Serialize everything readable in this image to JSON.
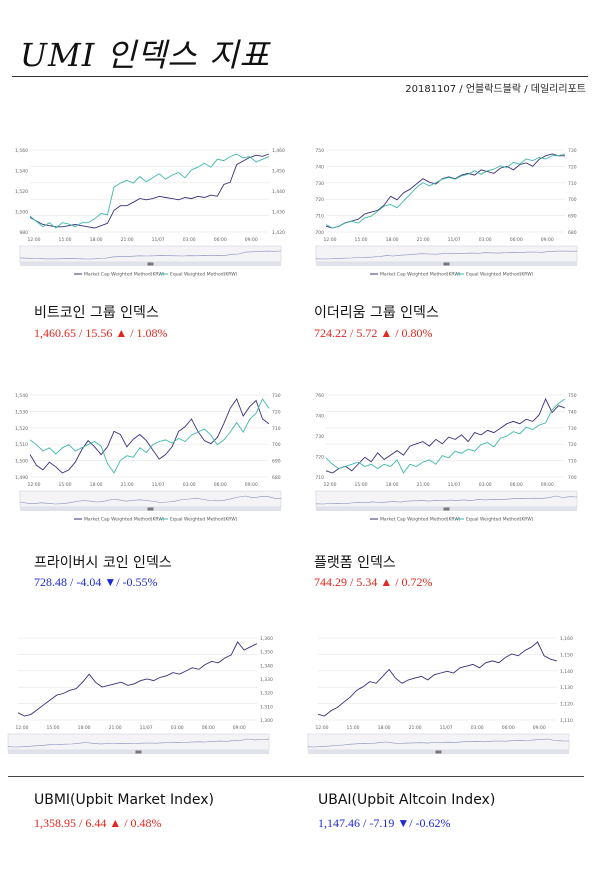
{
  "page": {
    "title": "UMI 인덱스 지표",
    "subtitle": "20181107 / 언블락드블락 / 데일리리포트"
  },
  "colors": {
    "up": "#e0281e",
    "down": "#1c2bd6",
    "series_cap": "#3b2f7a",
    "series_equal": "#3fb8a8"
  },
  "legend": {
    "cap": "Market Cap Weighted Method(KRW)",
    "equal": "Equal Weighted Method(KRW)"
  },
  "x_ticks": [
    "12:00",
    "15:00",
    "18:00",
    "21:00",
    "11/07",
    "03:00",
    "06:00",
    "09:00"
  ],
  "indexes": [
    {
      "name": "비트코인 그룹 인덱스",
      "value_text": "1,460.65 / 15.56 ▲ / 1.08%",
      "direction": "up",
      "chart_data": {
        "type": "line",
        "y_left_ticks": [
          "1,560",
          "1,540",
          "1,520",
          "1,500",
          "980"
        ],
        "y_right_ticks": [
          "1,460",
          "1,450",
          "1,440",
          "1,430",
          "1,420"
        ],
        "series": [
          {
            "name": "Market Cap Weighted Method(KRW)",
            "values": [
              1500,
              1497,
              1494,
              1493,
              1492,
              1492,
              1493,
              1494,
              1493,
              1492,
              1491,
              1493,
              1495,
              1506,
              1510,
              1510,
              1513,
              1516,
              1515,
              1516,
              1518,
              1517,
              1516,
              1515,
              1517,
              1516,
              1518,
              1517,
              1519,
              1518,
              1528,
              1530,
              1545,
              1548,
              1551,
              1553,
              1552,
              1554
            ]
          },
          {
            "name": "Equal Weighted Method(KRW)",
            "values": [
              1505,
              1501,
              1497,
              1500,
              1496,
              1500,
              1499,
              1497,
              1500,
              1500,
              1503,
              1507,
              1506,
              1527,
              1530,
              1532,
              1530,
              1535,
              1531,
              1534,
              1537,
              1533,
              1536,
              1538,
              1534,
              1540,
              1542,
              1545,
              1542,
              1548,
              1547,
              1550,
              1552,
              1549,
              1550,
              1546,
              1548,
              1550
            ]
          }
        ]
      }
    },
    {
      "name": "이더리움 그룹 인덱스",
      "value_text": "724.22 / 5.72 ▲ / 0.80%",
      "direction": "up",
      "chart_data": {
        "type": "line",
        "y_left_ticks": [
          "750",
          "740",
          "730",
          "720",
          "710",
          "700"
        ],
        "y_right_ticks": [
          "730",
          "720",
          "710",
          "700",
          "690",
          "680"
        ],
        "series": [
          {
            "name": "Market Cap Weighted Method(KRW)",
            "values": [
              704,
              703,
              704,
              706,
              707,
              708,
              711,
              712,
              713,
              716,
              721,
              719,
              723,
              725,
              728,
              731,
              729,
              728,
              731,
              732,
              731,
              733,
              734,
              733,
              736,
              735,
              734,
              737,
              738,
              736,
              739,
              740,
              738,
              742,
              744,
              745,
              744,
              744
            ]
          },
          {
            "name": "Equal Weighted Method(KRW)",
            "values": [
              708,
              706,
              707,
              709,
              710,
              709,
              712,
              713,
              716,
              719,
              720,
              718,
              722,
              726,
              730,
              733,
              731,
              733,
              735,
              736,
              735,
              737,
              738,
              740,
              738,
              740,
              741,
              743,
              742,
              745,
              744,
              747,
              746,
              748,
              747,
              749,
              749,
              750
            ]
          }
        ]
      }
    },
    {
      "name": "프라이버시 코인 인덱스",
      "value_text": "728.48 / -4.04 ▼/ -0.55%",
      "direction": "down",
      "chart_data": {
        "type": "line",
        "y_left_ticks": [
          "1,540",
          "1,530",
          "1,520",
          "1,510",
          "1,500",
          "1,490"
        ],
        "y_right_ticks": [
          "730",
          "720",
          "710",
          "700",
          "690",
          "680"
        ],
        "series": [
          {
            "name": "Market Cap Weighted Method(KRW)",
            "values": [
              1505,
              1498,
              1495,
              1500,
              1497,
              1493,
              1495,
              1500,
              1508,
              1514,
              1510,
              1505,
              1510,
              1520,
              1518,
              1510,
              1515,
              1518,
              1514,
              1508,
              1502,
              1505,
              1510,
              1520,
              1523,
              1528,
              1520,
              1514,
              1512,
              1516,
              1525,
              1535,
              1541,
              1530,
              1536,
              1540,
              1528,
              1525
            ]
          },
          {
            "name": "Equal Weighted Method(KRW)",
            "values": [
              1515,
              1512,
              1508,
              1510,
              1506,
              1510,
              1512,
              1508,
              1510,
              1512,
              1514,
              1511,
              1500,
              1494,
              1502,
              1505,
              1504,
              1510,
              1507,
              1512,
              1514,
              1515,
              1513,
              1516,
              1514,
              1518,
              1520,
              1522,
              1518,
              1512,
              1515,
              1520,
              1526,
              1520,
              1528,
              1532,
              1541,
              1535
            ]
          }
        ]
      }
    },
    {
      "name": "플랫폼 인덱스",
      "value_text": "744.29 / 5.34 ▲ / 0.72%",
      "direction": "up",
      "chart_data": {
        "type": "line",
        "y_left_ticks": [
          "760",
          "740",
          "730",
          "720",
          "710"
        ],
        "y_right_ticks": [
          "750",
          "740",
          "730",
          "720",
          "710",
          "700"
        ],
        "series": [
          {
            "name": "Market Cap Weighted Method(KRW)",
            "values": [
              716,
              715,
              717,
              718,
              716,
              719,
              722,
              720,
              724,
              721,
              723,
              725,
              723,
              727,
              728,
              729,
              727,
              730,
              728,
              731,
              730,
              732,
              729,
              733,
              732,
              734,
              733,
              735,
              737,
              738,
              737,
              739,
              738,
              741,
              748,
              742,
              745,
              744
            ]
          },
          {
            "name": "Equal Weighted Method(KRW)",
            "values": [
              715,
              712,
              710,
              711,
              712,
              713,
              711,
              712,
              710,
              712,
              711,
              714,
              708,
              712,
              711,
              713,
              714,
              712,
              716,
              715,
              718,
              717,
              719,
              718,
              721,
              722,
              720,
              724,
              725,
              727,
              726,
              729,
              728,
              730,
              731,
              737,
              740,
              742
            ]
          }
        ]
      }
    },
    {
      "name": "UBMI(Upbit Market Index)",
      "value_text": "1,358.95 / 6.44 ▲ / 0.48%",
      "direction": "up",
      "chart_data": {
        "type": "line",
        "y_left_ticks": [],
        "y_right_ticks": [
          "1,360",
          "1,350",
          "1,340",
          "1,330",
          "1,320",
          "1,310",
          "1,300"
        ],
        "series": [
          {
            "name": "UBMI",
            "values": [
              1316,
              1314,
              1315,
              1318,
              1321,
              1324,
              1327,
              1328,
              1330,
              1331,
              1335,
              1340,
              1335,
              1332,
              1333,
              1334,
              1335,
              1333,
              1334,
              1336,
              1337,
              1336,
              1338,
              1339,
              1341,
              1340,
              1342,
              1344,
              1343,
              1346,
              1348,
              1347,
              1350,
              1352,
              1360,
              1355,
              1357,
              1359
            ]
          }
        ]
      }
    },
    {
      "name": "UBAI(Upbit Altcoin Index)",
      "value_text": "1,147.46 / -7.19 ▼/ -0.62%",
      "direction": "down",
      "chart_data": {
        "type": "line",
        "y_left_ticks": [],
        "y_right_ticks": [
          "1,160",
          "1,150",
          "1,140",
          "1,130",
          "1,120",
          "1,110"
        ],
        "series": [
          {
            "name": "UBAI",
            "values": [
              1116,
              1115,
              1118,
              1120,
              1123,
              1126,
              1130,
              1132,
              1135,
              1134,
              1138,
              1142,
              1137,
              1134,
              1136,
              1137,
              1138,
              1136,
              1139,
              1140,
              1141,
              1140,
              1143,
              1144,
              1145,
              1143,
              1146,
              1147,
              1146,
              1149,
              1151,
              1150,
              1153,
              1155,
              1158,
              1150,
              1148,
              1147
            ]
          }
        ]
      }
    }
  ]
}
